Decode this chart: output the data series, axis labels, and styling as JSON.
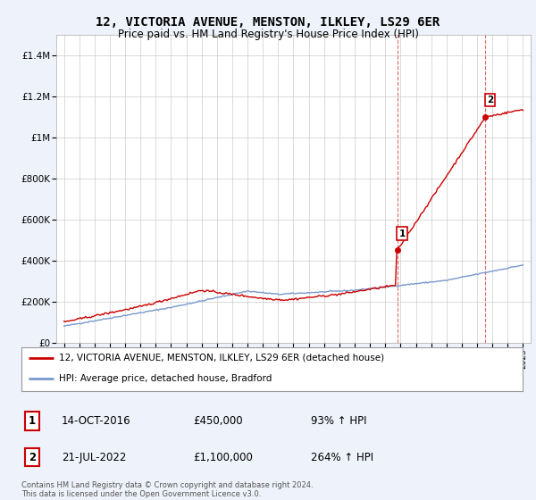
{
  "title": "12, VICTORIA AVENUE, MENSTON, ILKLEY, LS29 6ER",
  "subtitle": "Price paid vs. HM Land Registry's House Price Index (HPI)",
  "ylabel_ticks": [
    "£0",
    "£200K",
    "£400K",
    "£600K",
    "£800K",
    "£1M",
    "£1.2M",
    "£1.4M"
  ],
  "ytick_values": [
    0,
    200000,
    400000,
    600000,
    800000,
    1000000,
    1200000,
    1400000
  ],
  "ylim": [
    0,
    1500000
  ],
  "xlim_start": 1994.5,
  "xlim_end": 2025.5,
  "legend_line1": "12, VICTORIA AVENUE, MENSTON, ILKLEY, LS29 6ER (detached house)",
  "legend_line2": "HPI: Average price, detached house, Bradford",
  "sale1_label": "1",
  "sale1_date": "14-OCT-2016",
  "sale1_price": "£450,000",
  "sale1_pct": "93% ↑ HPI",
  "sale1_x": 2016.79,
  "sale1_y": 450000,
  "sale2_label": "2",
  "sale2_date": "21-JUL-2022",
  "sale2_price": "£1,100,000",
  "sale2_pct": "264% ↑ HPI",
  "sale2_x": 2022.55,
  "sale2_y": 1100000,
  "footer": "Contains HM Land Registry data © Crown copyright and database right 2024.\nThis data is licensed under the Open Government Licence v3.0.",
  "line_color_red": "#cc0000",
  "line_color_blue": "#7799cc",
  "background_color": "#eef2fa",
  "plot_bg_color": "#ffffff",
  "grid_color": "#cccccc",
  "sale_box_color": "#cc0000",
  "title_fontsize": 10,
  "subtitle_fontsize": 8.5
}
